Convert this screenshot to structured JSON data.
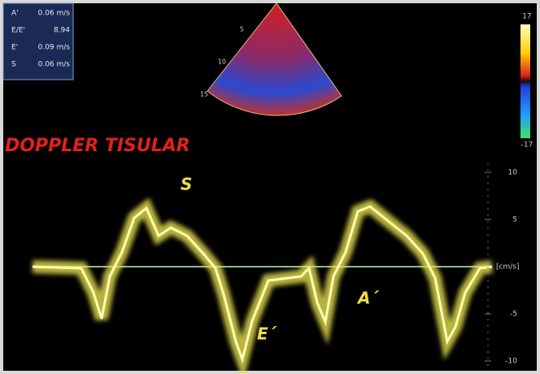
{
  "measurements": [
    {
      "label": "A'",
      "value": "0.06 m/s"
    },
    {
      "label": "E/E'",
      "value": "8.94"
    },
    {
      "label": "E'",
      "value": "0.09 m/s"
    },
    {
      "label": "S",
      "value": "0.06 m/s"
    }
  ],
  "title": "DOPPLER TISULAR",
  "wave_labels": {
    "s": "S",
    "e": "E´",
    "a": "A´"
  },
  "velocity_scale": {
    "ticks": [
      10,
      5,
      -5,
      -10
    ],
    "unit": "[cm/s]"
  },
  "color_scale": {
    "max": "17",
    "min": "-17"
  },
  "depth_labels": [
    "5",
    "10",
    "15"
  ]
}
